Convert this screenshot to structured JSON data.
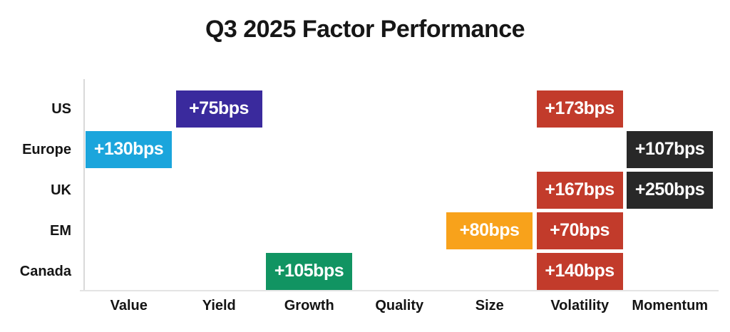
{
  "title": "Q3 2025 Factor Performance",
  "chart_data": {
    "type": "heatmap",
    "title": "Q3 2025 Factor Performance",
    "rows": [
      "US",
      "Europe",
      "UK",
      "EM",
      "Canada"
    ],
    "columns": [
      "Value",
      "Yield",
      "Growth",
      "Quality",
      "Size",
      "Volatility",
      "Momentum"
    ],
    "unit": "bps",
    "cells": [
      {
        "row": "US",
        "column": "Yield",
        "value": 75,
        "label": "+75bps",
        "color": "#3a2a9d"
      },
      {
        "row": "US",
        "column": "Volatility",
        "value": 173,
        "label": "+173bps",
        "color": "#c23b2b"
      },
      {
        "row": "Europe",
        "column": "Value",
        "value": 130,
        "label": "+130bps",
        "color": "#1ba5dc"
      },
      {
        "row": "Europe",
        "column": "Momentum",
        "value": 107,
        "label": "+107bps",
        "color": "#282828"
      },
      {
        "row": "UK",
        "column": "Volatility",
        "value": 167,
        "label": "+167bps",
        "color": "#c23b2b"
      },
      {
        "row": "UK",
        "column": "Momentum",
        "value": 250,
        "label": "+250bps",
        "color": "#282828"
      },
      {
        "row": "EM",
        "column": "Size",
        "value": 80,
        "label": "+80bps",
        "color": "#f8a21b"
      },
      {
        "row": "EM",
        "column": "Volatility",
        "value": 70,
        "label": "+70bps",
        "color": "#c23b2b"
      },
      {
        "row": "Canada",
        "column": "Growth",
        "value": 105,
        "label": "+105bps",
        "color": "#119462"
      },
      {
        "row": "Canada",
        "column": "Volatility",
        "value": 140,
        "label": "+140bps",
        "color": "#c23b2b"
      }
    ],
    "layout": {
      "legend": false,
      "grid": false,
      "background": "#ffffff",
      "axis_color": "#d9d9d9",
      "text_color": "#141414"
    }
  }
}
